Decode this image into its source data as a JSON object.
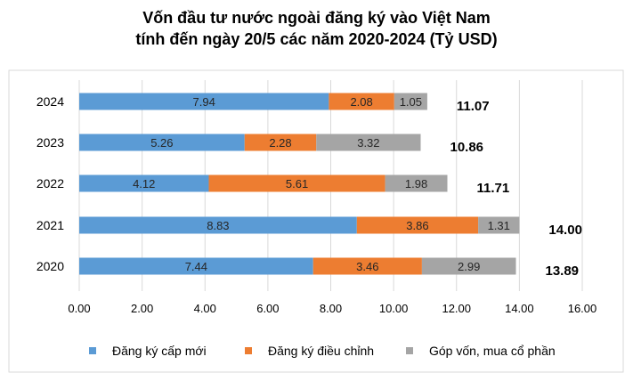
{
  "chart_data": {
    "type": "bar",
    "orientation": "horizontal",
    "stacked": true,
    "title_line1": "Vốn đầu tư nước ngoài đăng ký vào Việt Nam",
    "title_line2": "tính đến ngày 20/5 các năm 2020-2024 (Tỷ USD)",
    "categories": [
      "2024",
      "2023",
      "2022",
      "2021",
      "2020"
    ],
    "series": [
      {
        "name": "Đăng ký cấp mới",
        "color": "#5B9BD5",
        "values": [
          7.94,
          5.26,
          4.12,
          8.83,
          7.44
        ]
      },
      {
        "name": "Đăng ký điều chỉnh",
        "color": "#ED7D31",
        "values": [
          2.08,
          2.28,
          5.61,
          3.86,
          3.46
        ]
      },
      {
        "name": "Góp vốn, mua cổ phần",
        "color": "#A5A5A5",
        "values": [
          1.05,
          3.32,
          1.98,
          1.31,
          2.99
        ]
      }
    ],
    "totals": [
      "11.07",
      "10.86",
      "11.71",
      "14.00",
      "13.89"
    ],
    "xlim": [
      0,
      16
    ],
    "x_ticks": [
      "0.00",
      "2.00",
      "4.00",
      "6.00",
      "8.00",
      "10.00",
      "12.00",
      "14.00",
      "16.00"
    ],
    "grid": true,
    "legend_position": "bottom"
  }
}
